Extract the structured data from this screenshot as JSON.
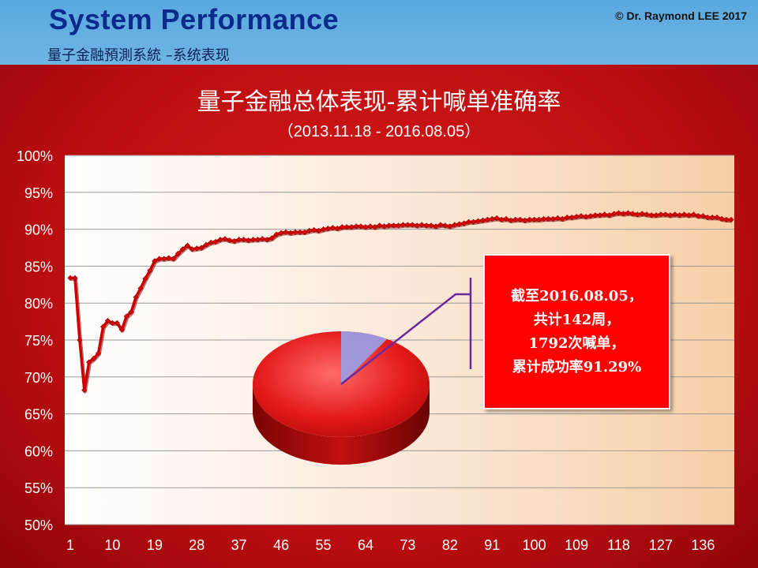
{
  "header": {
    "title": "System Performance",
    "subtitle": "量子金融預測系統 –系统表现",
    "copyright": "© Dr. Raymond LEE 2017"
  },
  "annotation": {
    "lines": [
      "截至2016.08.05，",
      "共计142周，",
      "1792次喊单，",
      "累计成功率91.29%"
    ]
  },
  "colors": {
    "frame": "#c01010",
    "line": "#cc0000",
    "annotation_bg": "#ff0000",
    "pie_main": "#e01a1a",
    "pie_slice": "#9a9ee8",
    "leader": "#6a2aa0"
  },
  "chart_data": [
    {
      "type": "line",
      "title": "量子金融总体表现-累计喊单准确率",
      "subtitle": "（2013.11.18 - 2016.08.05）",
      "xlabel": "",
      "ylabel": "",
      "ylim": [
        50,
        100
      ],
      "y_ticks": [
        "50%",
        "55%",
        "60%",
        "65%",
        "70%",
        "75%",
        "80%",
        "85%",
        "90%",
        "95%",
        "100%"
      ],
      "x_ticks": [
        "1",
        "10",
        "19",
        "28",
        "37",
        "46",
        "55",
        "64",
        "73",
        "82",
        "91",
        "100",
        "109",
        "118",
        "127",
        "136"
      ],
      "x_range": [
        1,
        142
      ],
      "grid": true,
      "legend": "none",
      "series": [
        {
          "values": [
            83.4,
            83.4,
            75,
            68.2,
            72,
            72.5,
            73.2,
            76.8,
            77.6,
            77.3,
            77.3,
            76.4,
            78.2,
            78.8,
            80.8,
            82,
            83.3,
            84.4,
            85.7,
            86,
            86,
            86.1,
            86,
            86.7,
            87.3,
            87.8,
            87.3,
            87.4,
            87.5,
            87.9,
            88.2,
            88.3,
            88.6,
            88.7,
            88.5,
            88.4,
            88.6,
            88.6,
            88.5,
            88.6,
            88.6,
            88.7,
            88.6,
            88.8,
            89.3,
            89.5,
            89.6,
            89.5,
            89.6,
            89.6,
            89.6,
            89.8,
            89.9,
            89.8,
            90,
            90.1,
            90.2,
            90.1,
            90.3,
            90.3,
            90.3,
            90.4,
            90.4,
            90.3,
            90.4,
            90.3,
            90.5,
            90.4,
            90.5,
            90.5,
            90.5,
            90.6,
            90.6,
            90.6,
            90.5,
            90.6,
            90.5,
            90.5,
            90.4,
            90.6,
            90.5,
            90.4,
            90.6,
            90.7,
            90.8,
            91,
            91,
            91.1,
            91.2,
            91.3,
            91.4,
            91.5,
            91.3,
            91.4,
            91.2,
            91.3,
            91.3,
            91.2,
            91.3,
            91.3,
            91.3,
            91.4,
            91.4,
            91.4,
            91.5,
            91.4,
            91.6,
            91.6,
            91.7,
            91.8,
            91.7,
            91.8,
            91.9,
            91.9,
            92,
            91.9,
            92.1,
            92.2,
            92.1,
            92.2,
            92.1,
            92,
            92.1,
            92,
            91.9,
            91.9,
            92,
            92,
            91.9,
            92,
            91.9,
            92,
            91.9,
            92,
            91.8,
            91.8,
            91.6,
            91.6,
            91.6,
            91.4,
            91.3,
            91.29
          ]
        }
      ]
    },
    {
      "type": "pie",
      "slices": [
        {
          "value": 91.29
        },
        {
          "value": 8.71
        }
      ]
    }
  ]
}
